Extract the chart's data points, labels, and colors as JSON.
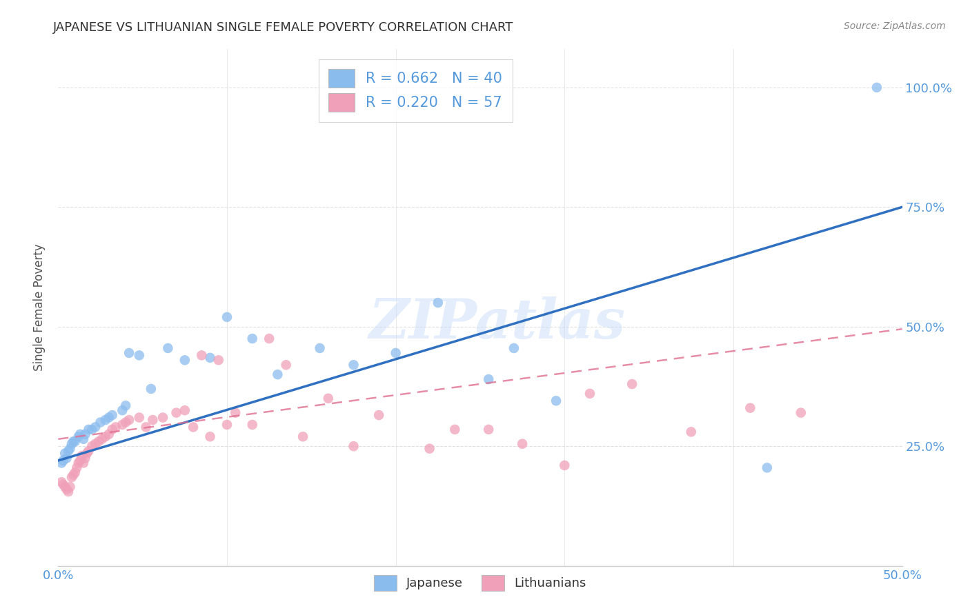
{
  "title": "JAPANESE VS LITHUANIAN SINGLE FEMALE POVERTY CORRELATION CHART",
  "source": "Source: ZipAtlas.com",
  "ylabel": "Single Female Poverty",
  "legend_label_bottom": "Japanese",
  "legend_label_bottom2": "Lithuanians",
  "japanese_R": "0.662",
  "japanese_N": "40",
  "lithuanian_R": "0.220",
  "lithuanian_N": "57",
  "xlim": [
    0.0,
    0.5
  ],
  "ylim": [
    0.0,
    1.08
  ],
  "xticks": [
    0.0,
    0.5
  ],
  "xtick_labels": [
    "0.0%",
    "50.0%"
  ],
  "yticks": [
    0.25,
    0.5,
    0.75,
    1.0
  ],
  "ytick_labels": [
    "25.0%",
    "50.0%",
    "75.0%",
    "100.0%"
  ],
  "japanese_color": "#8bbcee",
  "lithuanian_color": "#f0a0b8",
  "japanese_line_color": "#3070c0",
  "lithuanian_line_color": "#e07090",
  "background_color": "#ffffff",
  "grid_color": "#e0e0e0",
  "watermark": "ZIPatlas",
  "tick_label_color": "#5599dd",
  "japanese_line_x0": 0.0,
  "japanese_line_y0": 0.22,
  "japanese_line_x1": 0.5,
  "japanese_line_y1": 0.75,
  "lithuanian_line_x0": 0.0,
  "lithuanian_line_y0": 0.265,
  "lithuanian_line_x1": 0.5,
  "lithuanian_line_y1": 0.495,
  "japanese_x": [
    0.002,
    0.003,
    0.004,
    0.005,
    0.006,
    0.007,
    0.008,
    0.009,
    0.01,
    0.012,
    0.013,
    0.015,
    0.016,
    0.018,
    0.02,
    0.022,
    0.025,
    0.028,
    0.03,
    0.032,
    0.038,
    0.04,
    0.042,
    0.048,
    0.055,
    0.065,
    0.075,
    0.09,
    0.1,
    0.115,
    0.13,
    0.155,
    0.175,
    0.2,
    0.225,
    0.255,
    0.27,
    0.295,
    0.42,
    0.485
  ],
  "japanese_y": [
    0.215,
    0.22,
    0.235,
    0.225,
    0.24,
    0.245,
    0.255,
    0.26,
    0.26,
    0.27,
    0.275,
    0.265,
    0.275,
    0.285,
    0.285,
    0.29,
    0.3,
    0.305,
    0.31,
    0.315,
    0.325,
    0.335,
    0.445,
    0.44,
    0.37,
    0.455,
    0.43,
    0.435,
    0.52,
    0.475,
    0.4,
    0.455,
    0.42,
    0.445,
    0.55,
    0.39,
    0.455,
    0.345,
    0.205,
    1.0
  ],
  "lithuanian_x": [
    0.002,
    0.003,
    0.004,
    0.005,
    0.006,
    0.007,
    0.008,
    0.009,
    0.01,
    0.011,
    0.012,
    0.013,
    0.014,
    0.015,
    0.016,
    0.017,
    0.018,
    0.02,
    0.022,
    0.024,
    0.026,
    0.028,
    0.03,
    0.032,
    0.034,
    0.038,
    0.04,
    0.042,
    0.048,
    0.052,
    0.056,
    0.062,
    0.07,
    0.075,
    0.08,
    0.085,
    0.09,
    0.095,
    0.1,
    0.105,
    0.115,
    0.125,
    0.135,
    0.145,
    0.16,
    0.175,
    0.19,
    0.22,
    0.235,
    0.255,
    0.275,
    0.3,
    0.315,
    0.34,
    0.375,
    0.41,
    0.44
  ],
  "lithuanian_y": [
    0.175,
    0.17,
    0.165,
    0.16,
    0.155,
    0.165,
    0.185,
    0.19,
    0.195,
    0.205,
    0.215,
    0.22,
    0.23,
    0.215,
    0.225,
    0.235,
    0.24,
    0.25,
    0.255,
    0.26,
    0.265,
    0.27,
    0.275,
    0.285,
    0.29,
    0.295,
    0.3,
    0.305,
    0.31,
    0.29,
    0.305,
    0.31,
    0.32,
    0.325,
    0.29,
    0.44,
    0.27,
    0.43,
    0.295,
    0.32,
    0.295,
    0.475,
    0.42,
    0.27,
    0.35,
    0.25,
    0.315,
    0.245,
    0.285,
    0.285,
    0.255,
    0.21,
    0.36,
    0.38,
    0.28,
    0.33,
    0.32
  ]
}
